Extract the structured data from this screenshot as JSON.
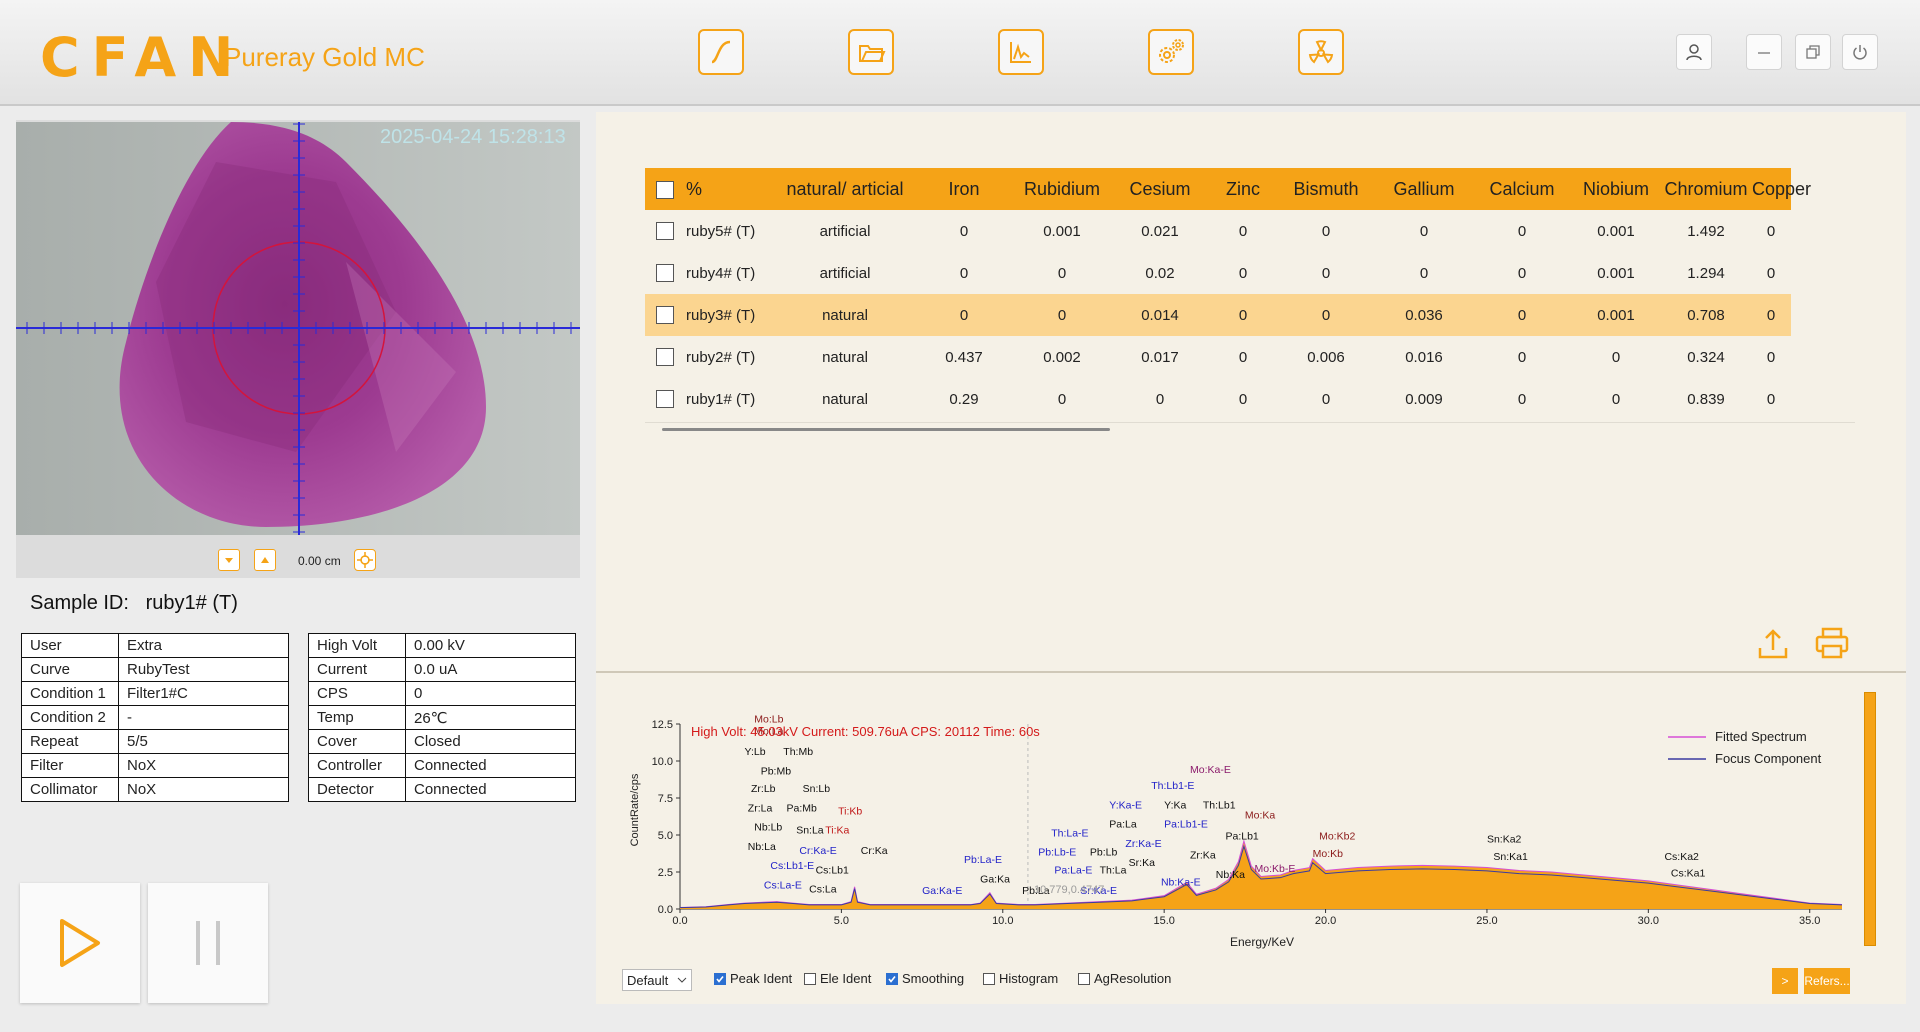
{
  "app": {
    "logo": "CFAN",
    "product": "Pureray Gold MC"
  },
  "toolbar": [
    "curve-icon",
    "folder-icon",
    "spectrum-icon",
    "settings-icon",
    "radiation-icon"
  ],
  "window_buttons": [
    "user-icon",
    "minimize-icon",
    "restore-icon",
    "power-icon"
  ],
  "camera": {
    "timestamp": "2025-04-24 15:28:13",
    "zoom": "0.00 cm"
  },
  "sample": {
    "label": "Sample ID:",
    "id": "ruby1# (T)"
  },
  "info_left": [
    {
      "k": "User",
      "v": "Extra"
    },
    {
      "k": "Curve",
      "v": "RubyTest"
    },
    {
      "k": "Condition 1",
      "v": "Filter1#C"
    },
    {
      "k": "Condition 2",
      "v": "-"
    },
    {
      "k": "Repeat",
      "v": "5/5"
    },
    {
      "k": "Filter",
      "v": "NoX"
    },
    {
      "k": "Collimator",
      "v": "NoX"
    }
  ],
  "info_right": [
    {
      "k": "High Volt",
      "v": "0.00 kV"
    },
    {
      "k": "Current",
      "v": "0.0 uA"
    },
    {
      "k": "CPS",
      "v": "0"
    },
    {
      "k": "Temp",
      "v": "26℃"
    },
    {
      "k": "Cover",
      "v": "Closed"
    },
    {
      "k": "Controller",
      "v": "Connected"
    },
    {
      "k": "Detector",
      "v": "Connected"
    }
  ],
  "results": {
    "headers": [
      "%",
      "natural/ articial",
      "Iron",
      "Rubidium",
      "Cesium",
      "Zinc",
      "Bismuth",
      "Gallium",
      "Calcium",
      "Niobium",
      "Chromium",
      "Copper"
    ],
    "rows": [
      [
        "ruby5# (T)",
        "artificial",
        "0",
        "0.001",
        "0.021",
        "0",
        "0",
        "0",
        "0",
        "0.001",
        "1.492",
        "0"
      ],
      [
        "ruby4# (T)",
        "artificial",
        "0",
        "0",
        "0.02",
        "0",
        "0",
        "0",
        "0",
        "0.001",
        "1.294",
        "0"
      ],
      [
        "ruby3# (T)",
        "natural",
        "0",
        "0",
        "0.014",
        "0",
        "0",
        "0.036",
        "0",
        "0.001",
        "0.708",
        "0"
      ],
      [
        "ruby2# (T)",
        "natural",
        "0.437",
        "0.002",
        "0.017",
        "0",
        "0.006",
        "0.016",
        "0",
        "0",
        "0.324",
        "0"
      ],
      [
        "ruby1# (T)",
        "natural",
        "0.29",
        "0",
        "0",
        "0",
        "0",
        "0.009",
        "0",
        "0",
        "0.839",
        "0"
      ]
    ],
    "selected_row": 2
  },
  "chart_data": {
    "type": "area",
    "header": "High Volt: 45.03kV  Current: 509.76uA  CPS: 20112  Time: 60s",
    "xlabel": "Energy/KeV",
    "ylabel": "CountRate/cps",
    "xlim": [
      0,
      36
    ],
    "ylim": [
      0,
      12.5
    ],
    "xticks": [
      "0.0",
      "5.0",
      "10.0",
      "15.0",
      "20.0",
      "25.0",
      "30.0",
      "35.0"
    ],
    "yticks": [
      "0.0",
      "2.5",
      "5.0",
      "7.5",
      "10.0",
      "12.5"
    ],
    "cursor_readout": "10.779,0.4747",
    "legend": [
      {
        "name": "Fitted Spectrum",
        "color": "#d64fd6"
      },
      {
        "name": "Focus Component",
        "color": "#3b3ba0"
      }
    ],
    "series": [
      {
        "name": "Fitted Spectrum",
        "x": [
          0.0,
          0.8,
          1.5,
          2.0,
          2.5,
          3.0,
          3.5,
          4.0,
          4.5,
          5.0,
          5.3,
          5.41,
          5.5,
          5.9,
          6.4,
          7.0,
          8.0,
          9.0,
          9.3,
          9.6,
          9.8,
          10.5,
          11.0,
          12.0,
          13.0,
          14.0,
          15.0,
          15.7,
          16.0,
          16.6,
          17.0,
          17.3,
          17.47,
          17.7,
          18.0,
          18.6,
          19.0,
          19.5,
          19.6,
          20.0,
          21.0,
          22.0,
          23.0,
          24.0,
          25.0,
          26.0,
          27.0,
          28.0,
          29.0,
          30.0,
          31.0,
          32.0,
          33.0,
          34.0,
          35.0,
          36.0
        ],
        "values": [
          0.1,
          0.15,
          0.3,
          0.4,
          0.45,
          0.5,
          0.4,
          0.3,
          0.3,
          0.3,
          0.5,
          1.5,
          0.5,
          0.3,
          0.3,
          0.3,
          0.3,
          0.3,
          0.4,
          1.1,
          0.4,
          0.3,
          0.3,
          0.4,
          0.5,
          0.6,
          0.9,
          1.8,
          1.0,
          1.4,
          2.0,
          3.2,
          4.6,
          2.9,
          2.2,
          2.3,
          2.6,
          2.8,
          3.4,
          2.6,
          2.8,
          2.9,
          2.95,
          2.9,
          2.8,
          2.6,
          2.5,
          2.3,
          2.1,
          1.9,
          1.6,
          1.3,
          1.0,
          0.7,
          0.4,
          0.3
        ]
      }
    ],
    "peak_labels": [
      {
        "text": "Mo:Lb",
        "x": 2.3,
        "y": 12.6,
        "c": "#8b1a1a"
      },
      {
        "text": "Mo:La",
        "x": 2.3,
        "y": 11.8,
        "c": "#8b1a1a"
      },
      {
        "text": "Y:Lb",
        "x": 2.0,
        "y": 10.4,
        "c": "#111"
      },
      {
        "text": "Th:Mb",
        "x": 3.2,
        "y": 10.4,
        "c": "#111"
      },
      {
        "text": "Pb:Mb",
        "x": 2.5,
        "y": 9.1,
        "c": "#111"
      },
      {
        "text": "Zr:Lb",
        "x": 2.2,
        "y": 7.9,
        "c": "#111"
      },
      {
        "text": "Sn:Lb",
        "x": 3.8,
        "y": 7.9,
        "c": "#111"
      },
      {
        "text": "Zr:La",
        "x": 2.1,
        "y": 6.6,
        "c": "#111"
      },
      {
        "text": "Pa:Mb",
        "x": 3.3,
        "y": 6.6,
        "c": "#111"
      },
      {
        "text": "Ti:Kb",
        "x": 4.9,
        "y": 6.4,
        "c": "#c01818"
      },
      {
        "text": "Nb:Lb",
        "x": 2.3,
        "y": 5.3,
        "c": "#111"
      },
      {
        "text": "Sn:La",
        "x": 3.6,
        "y": 5.1,
        "c": "#111"
      },
      {
        "text": "Ti:Ka",
        "x": 4.5,
        "y": 5.1,
        "c": "#c01818"
      },
      {
        "text": "Nb:La",
        "x": 2.1,
        "y": 4.0,
        "c": "#111"
      },
      {
        "text": "Cr:Ka-E",
        "x": 3.7,
        "y": 3.7,
        "c": "#2323c8"
      },
      {
        "text": "Cr:Ka",
        "x": 5.6,
        "y": 3.7,
        "c": "#111"
      },
      {
        "text": "Cs:Lb1-E",
        "x": 2.8,
        "y": 2.7,
        "c": "#2323c8"
      },
      {
        "text": "Cs:Lb1",
        "x": 4.2,
        "y": 2.4,
        "c": "#111"
      },
      {
        "text": "Cs:La-E",
        "x": 2.6,
        "y": 1.4,
        "c": "#2323c8"
      },
      {
        "text": "Cs:La",
        "x": 4.0,
        "y": 1.1,
        "c": "#111"
      },
      {
        "text": "Ga:Ka-E",
        "x": 7.5,
        "y": 1.0,
        "c": "#2323c8"
      },
      {
        "text": "Pb:La-E",
        "x": 8.8,
        "y": 3.1,
        "c": "#2323c8"
      },
      {
        "text": "Ga:Ka",
        "x": 9.3,
        "y": 1.8,
        "c": "#111"
      },
      {
        "text": "Pb:La",
        "x": 10.6,
        "y": 1.0,
        "c": "#111"
      },
      {
        "text": "Th:La-E",
        "x": 11.5,
        "y": 4.9,
        "c": "#2323c8"
      },
      {
        "text": "Pb:Lb-E",
        "x": 11.1,
        "y": 3.6,
        "c": "#2323c8"
      },
      {
        "text": "Pb:Lb",
        "x": 12.7,
        "y": 3.6,
        "c": "#111"
      },
      {
        "text": "Pa:La-E",
        "x": 11.6,
        "y": 2.4,
        "c": "#2323c8"
      },
      {
        "text": "Th:La",
        "x": 13.0,
        "y": 2.4,
        "c": "#111"
      },
      {
        "text": "Sr:Ka-E",
        "x": 12.4,
        "y": 1.0,
        "c": "#2323c8"
      },
      {
        "text": "Y:Ka-E",
        "x": 13.3,
        "y": 6.8,
        "c": "#2323c8"
      },
      {
        "text": "Y:Ka",
        "x": 15.0,
        "y": 6.8,
        "c": "#111"
      },
      {
        "text": "Th:Lb1-E",
        "x": 14.6,
        "y": 8.1,
        "c": "#2323c8"
      },
      {
        "text": "Th:Lb1",
        "x": 16.2,
        "y": 6.8,
        "c": "#111"
      },
      {
        "text": "Pa:La",
        "x": 13.3,
        "y": 5.5,
        "c": "#111"
      },
      {
        "text": "Pa:Lb1-E",
        "x": 15.0,
        "y": 5.5,
        "c": "#2323c8"
      },
      {
        "text": "Zr:Ka-E",
        "x": 13.8,
        "y": 4.2,
        "c": "#2323c8"
      },
      {
        "text": "Sr:Ka",
        "x": 13.9,
        "y": 2.9,
        "c": "#111"
      },
      {
        "text": "Zr:Ka",
        "x": 15.8,
        "y": 3.4,
        "c": "#111"
      },
      {
        "text": "Nb:Ka-E",
        "x": 14.9,
        "y": 1.6,
        "c": "#2323c8"
      },
      {
        "text": "Pa:Lb1",
        "x": 16.9,
        "y": 4.7,
        "c": "#111"
      },
      {
        "text": "Nb:Ka",
        "x": 16.6,
        "y": 2.1,
        "c": "#111"
      },
      {
        "text": "Mo:Ka-E",
        "x": 15.8,
        "y": 9.2,
        "c": "#8b1a6b"
      },
      {
        "text": "Mo:Ka",
        "x": 17.5,
        "y": 6.1,
        "c": "#8b1a1a"
      },
      {
        "text": "Mo:Kb-E",
        "x": 17.8,
        "y": 2.5,
        "c": "#8b1a6b"
      },
      {
        "text": "Mo:Kb2",
        "x": 19.8,
        "y": 4.7,
        "c": "#8b1a1a"
      },
      {
        "text": "Mo:Kb",
        "x": 19.6,
        "y": 3.5,
        "c": "#8b1a1a"
      },
      {
        "text": "Sn:Ka2",
        "x": 25.0,
        "y": 4.5,
        "c": "#111"
      },
      {
        "text": "Sn:Ka1",
        "x": 25.2,
        "y": 3.3,
        "c": "#111"
      },
      {
        "text": "Cs:Ka2",
        "x": 30.5,
        "y": 3.3,
        "c": "#111"
      },
      {
        "text": "Cs:Ka1",
        "x": 30.7,
        "y": 2.2,
        "c": "#111"
      }
    ]
  },
  "chart_options": {
    "preset": "Default",
    "checks": [
      {
        "label": "Peak Ident",
        "on": true
      },
      {
        "label": "Ele Ident",
        "on": false
      },
      {
        "label": "Smoothing",
        "on": true
      },
      {
        "label": "Histogram",
        "on": false
      },
      {
        "label": "AgResolution",
        "on": false
      }
    ],
    "next_label": ">",
    "refer_label": "Refers..."
  }
}
